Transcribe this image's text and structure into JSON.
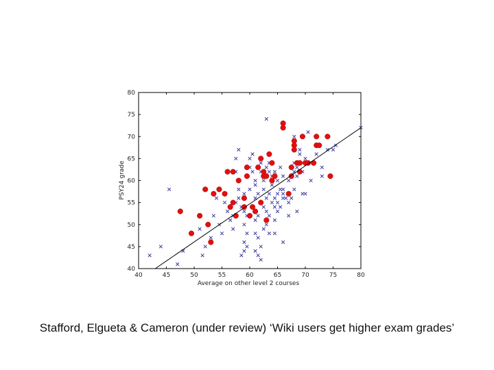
{
  "caption": "Stafford, Elgueta & Cameron (under review) ‘Wiki users get higher exam grades’",
  "chart_data": {
    "type": "scatter",
    "xlabel": "Average on other level 2 courses",
    "ylabel": "PSY24 grade",
    "xlim": [
      40,
      80
    ],
    "ylim": [
      40,
      80
    ],
    "xticks": [
      40,
      45,
      50,
      55,
      60,
      65,
      70,
      75,
      80
    ],
    "yticks": [
      40,
      45,
      50,
      55,
      60,
      65,
      70,
      75,
      80
    ],
    "grid": false,
    "colors": {
      "non_users": "#3a3aa0",
      "users": "#e01010",
      "trend": "#000000"
    },
    "series": [
      {
        "marker": "x",
        "points": [
          [
            42,
            43
          ],
          [
            44,
            45
          ],
          [
            45.5,
            58
          ],
          [
            47,
            41
          ],
          [
            48,
            44
          ],
          [
            51,
            49
          ],
          [
            51.5,
            43
          ],
          [
            52,
            45
          ],
          [
            52.5,
            50
          ],
          [
            53,
            47
          ],
          [
            53.5,
            52
          ],
          [
            54,
            56
          ],
          [
            54.5,
            50
          ],
          [
            55,
            48
          ],
          [
            55.5,
            55
          ],
          [
            56,
            53
          ],
          [
            56.5,
            51
          ],
          [
            57,
            49
          ],
          [
            57,
            52
          ],
          [
            57.5,
            55
          ],
          [
            57.5,
            62
          ],
          [
            57.5,
            65
          ],
          [
            58,
            56
          ],
          [
            58,
            58
          ],
          [
            58,
            60
          ],
          [
            58,
            67
          ],
          [
            58.5,
            54
          ],
          [
            58.5,
            43
          ],
          [
            59,
            44
          ],
          [
            59,
            46
          ],
          [
            59,
            50
          ],
          [
            59,
            53
          ],
          [
            59,
            57
          ],
          [
            59.5,
            45
          ],
          [
            59.5,
            48
          ],
          [
            59.5,
            52
          ],
          [
            60,
            58
          ],
          [
            60,
            63
          ],
          [
            60,
            65
          ],
          [
            60.5,
            62
          ],
          [
            60.5,
            66
          ],
          [
            60.5,
            54
          ],
          [
            61,
            44
          ],
          [
            61,
            48
          ],
          [
            61,
            51
          ],
          [
            61,
            56
          ],
          [
            61,
            59
          ],
          [
            61,
            60
          ],
          [
            61.5,
            43
          ],
          [
            61.5,
            47
          ],
          [
            61.5,
            52
          ],
          [
            61.5,
            57
          ],
          [
            62,
            42
          ],
          [
            62,
            45
          ],
          [
            62,
            55
          ],
          [
            62,
            62
          ],
          [
            62,
            64
          ],
          [
            62.5,
            49
          ],
          [
            62.5,
            54
          ],
          [
            62.5,
            58
          ],
          [
            62.5,
            60
          ],
          [
            63,
            50
          ],
          [
            63,
            53
          ],
          [
            63,
            56
          ],
          [
            63,
            61
          ],
          [
            63,
            63
          ],
          [
            63,
            74
          ],
          [
            63.5,
            48
          ],
          [
            63.5,
            52
          ],
          [
            63.5,
            57
          ],
          [
            63.5,
            62
          ],
          [
            63.5,
            64
          ],
          [
            64,
            55
          ],
          [
            64,
            59
          ],
          [
            64,
            61
          ],
          [
            64.5,
            48
          ],
          [
            64.5,
            51
          ],
          [
            64.5,
            54
          ],
          [
            64.5,
            56
          ],
          [
            64.5,
            62
          ],
          [
            65,
            53
          ],
          [
            65,
            55
          ],
          [
            65,
            57
          ],
          [
            65,
            60
          ],
          [
            65.5,
            54
          ],
          [
            65.5,
            58
          ],
          [
            65.5,
            63
          ],
          [
            66,
            46
          ],
          [
            66,
            56
          ],
          [
            66,
            57
          ],
          [
            66,
            58
          ],
          [
            66,
            61
          ],
          [
            66.5,
            56
          ],
          [
            67,
            52
          ],
          [
            67,
            55
          ],
          [
            67,
            60
          ],
          [
            67.5,
            56
          ],
          [
            67.5,
            61
          ],
          [
            68,
            58
          ],
          [
            68,
            62
          ],
          [
            68,
            64
          ],
          [
            68,
            68
          ],
          [
            68,
            70
          ],
          [
            68.5,
            53
          ],
          [
            68.5,
            61
          ],
          [
            68.5,
            63
          ],
          [
            69,
            66
          ],
          [
            69,
            67
          ],
          [
            69.5,
            57
          ],
          [
            69.5,
            62
          ],
          [
            70,
            57
          ],
          [
            70,
            64
          ],
          [
            70,
            65
          ],
          [
            70.5,
            71
          ],
          [
            71,
            60
          ],
          [
            71.5,
            64
          ],
          [
            72,
            66
          ],
          [
            73,
            61
          ],
          [
            73,
            63
          ],
          [
            74,
            67
          ],
          [
            75,
            67
          ],
          [
            75.5,
            68
          ],
          [
            80,
            72
          ]
        ]
      },
      {
        "marker": "o",
        "points": [
          [
            47.5,
            53
          ],
          [
            49.5,
            48
          ],
          [
            51,
            52
          ],
          [
            52,
            58
          ],
          [
            52.5,
            50
          ],
          [
            53,
            46
          ],
          [
            53.5,
            57
          ],
          [
            54.5,
            58
          ],
          [
            55.5,
            57
          ],
          [
            56,
            62
          ],
          [
            56.5,
            54
          ],
          [
            57,
            62
          ],
          [
            57,
            55
          ],
          [
            57.5,
            52
          ],
          [
            58,
            60
          ],
          [
            59,
            54
          ],
          [
            59,
            56
          ],
          [
            59.5,
            61
          ],
          [
            59.5,
            63
          ],
          [
            60,
            52
          ],
          [
            60.5,
            54
          ],
          [
            61,
            53
          ],
          [
            61.5,
            63
          ],
          [
            62,
            55
          ],
          [
            62,
            65
          ],
          [
            62.5,
            62
          ],
          [
            62.5,
            61
          ],
          [
            63,
            51
          ],
          [
            63,
            61
          ],
          [
            63.5,
            66
          ],
          [
            64,
            64
          ],
          [
            64,
            60
          ],
          [
            64.5,
            61
          ],
          [
            66,
            73
          ],
          [
            66,
            72
          ],
          [
            67,
            57
          ],
          [
            67.5,
            63
          ],
          [
            67.5,
            61
          ],
          [
            68,
            69
          ],
          [
            68,
            68
          ],
          [
            68,
            67
          ],
          [
            68.5,
            64
          ],
          [
            69,
            64
          ],
          [
            69,
            62
          ],
          [
            69.5,
            70
          ],
          [
            70,
            64
          ],
          [
            70.5,
            64
          ],
          [
            71.5,
            64
          ],
          [
            72,
            70
          ],
          [
            72,
            68
          ],
          [
            72.5,
            68
          ],
          [
            74,
            70
          ],
          [
            74.5,
            61
          ]
        ]
      }
    ],
    "trendline": {
      "x": [
        43,
        80
      ],
      "y": [
        40,
        72
      ]
    }
  }
}
